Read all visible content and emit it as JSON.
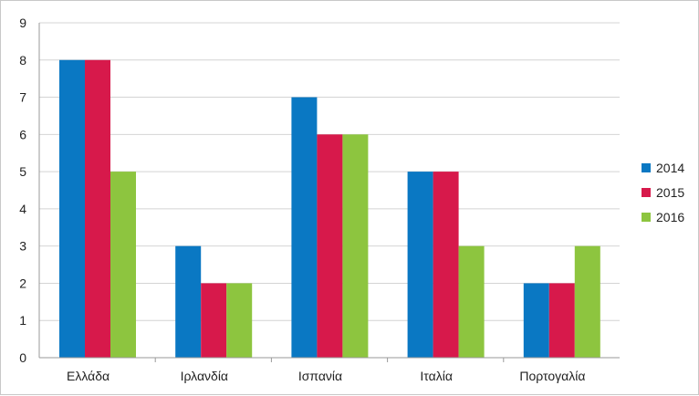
{
  "chart_data": {
    "type": "bar",
    "categories": [
      "Ελλάδα",
      "Ιρλανδία",
      "Ισπανία",
      "Ιταλία",
      "Πορτογαλία"
    ],
    "series": [
      {
        "name": "2014",
        "values": [
          8,
          3,
          7,
          5,
          2
        ]
      },
      {
        "name": "2015",
        "values": [
          8,
          2,
          6,
          5,
          2
        ]
      },
      {
        "name": "2016",
        "values": [
          5,
          2,
          6,
          3,
          3
        ]
      }
    ],
    "colors": [
      "#0a78c3",
      "#d7194b",
      "#8dc53f"
    ],
    "yticks": [
      "0",
      "1",
      "2",
      "3",
      "4",
      "5",
      "6",
      "7",
      "8",
      "9"
    ],
    "ylim": [
      0,
      9
    ],
    "grid": true,
    "legend_position": "right"
  }
}
